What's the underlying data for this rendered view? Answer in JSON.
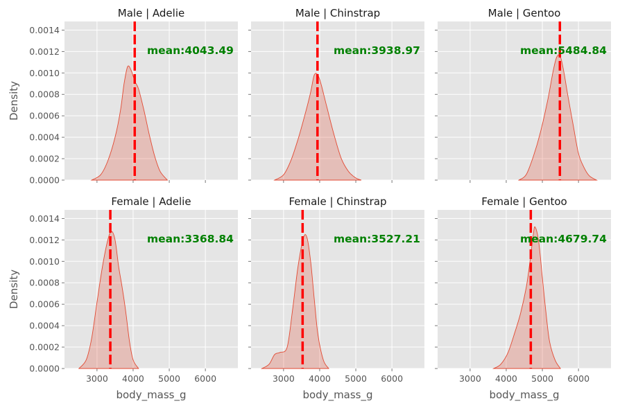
{
  "chart_data": {
    "type": "area",
    "layout": {
      "rows": [
        "Male",
        "Female"
      ],
      "cols": [
        "Adelie",
        "Chinstrap",
        "Gentoo"
      ]
    },
    "xlabel": "body_mass_g",
    "ylabel": "Density",
    "xlim": [
      2100,
      6900
    ],
    "ylim": [
      0,
      0.00148
    ],
    "xticks": [
      3000,
      4000,
      5000,
      6000
    ],
    "yticks": [
      0,
      0.0002,
      0.0004,
      0.0006,
      0.0008,
      0.001,
      0.0012,
      0.0014
    ],
    "ytick_labels": [
      "0.0000",
      "0.0002",
      "0.0004",
      "0.0006",
      "0.0008",
      "0.0010",
      "0.0012",
      "0.0014"
    ],
    "colors": {
      "kde": "#e24a33",
      "mean_line": "#ff0000",
      "mean_text": "#008000",
      "panel_bg": "#e5e5e5"
    },
    "panels": [
      {
        "title": "Male | Adelie",
        "mean": 4043.49,
        "mean_label": "mean:4043.49",
        "kde": [
          [
            2850,
            0
          ],
          [
            3100,
            5e-05
          ],
          [
            3300,
            0.00018
          ],
          [
            3500,
            0.0004
          ],
          [
            3650,
            0.00065
          ],
          [
            3750,
            0.0009
          ],
          [
            3850,
            0.00106
          ],
          [
            3950,
            0.00102
          ],
          [
            4050,
            0.00092
          ],
          [
            4150,
            0.00085
          ],
          [
            4300,
            0.00065
          ],
          [
            4450,
            0.00042
          ],
          [
            4600,
            0.00022
          ],
          [
            4750,
            8e-05
          ],
          [
            4950,
            0
          ]
        ]
      },
      {
        "title": "Male | Chinstrap",
        "mean": 3938.97,
        "mean_label": "mean:3938.97",
        "kde": [
          [
            2750,
            0
          ],
          [
            3000,
            5e-05
          ],
          [
            3200,
            0.00018
          ],
          [
            3400,
            0.00038
          ],
          [
            3600,
            0.00062
          ],
          [
            3750,
            0.00082
          ],
          [
            3850,
            0.00098
          ],
          [
            3950,
            0.00098
          ],
          [
            4050,
            0.00088
          ],
          [
            4200,
            0.00068
          ],
          [
            4400,
            0.00042
          ],
          [
            4600,
            0.0002
          ],
          [
            4800,
            8e-05
          ],
          [
            5000,
            2e-05
          ],
          [
            5150,
            0
          ]
        ]
      },
      {
        "title": "Male | Gentoo",
        "mean": 5484.84,
        "mean_label": "mean:5484.84",
        "kde": [
          [
            4350,
            0
          ],
          [
            4550,
            5e-05
          ],
          [
            4750,
            0.00022
          ],
          [
            4950,
            0.00045
          ],
          [
            5150,
            0.00075
          ],
          [
            5300,
            0.00102
          ],
          [
            5400,
            0.00115
          ],
          [
            5500,
            0.00115
          ],
          [
            5600,
            0.001
          ],
          [
            5700,
            0.0008
          ],
          [
            5850,
            0.00052
          ],
          [
            6000,
            0.00025
          ],
          [
            6150,
            0.00012
          ],
          [
            6300,
            4e-05
          ],
          [
            6500,
            0
          ]
        ]
      },
      {
        "title": "Female | Adelie",
        "mean": 3368.84,
        "mean_label": "mean:3368.84",
        "kde": [
          [
            2500,
            0
          ],
          [
            2700,
            8e-05
          ],
          [
            2850,
            0.00028
          ],
          [
            3000,
            0.00062
          ],
          [
            3150,
            0.00095
          ],
          [
            3300,
            0.0012
          ],
          [
            3400,
            0.00128
          ],
          [
            3500,
            0.0012
          ],
          [
            3600,
            0.00095
          ],
          [
            3700,
            0.00075
          ],
          [
            3800,
            0.00052
          ],
          [
            3900,
            0.00025
          ],
          [
            4000,
            8e-05
          ],
          [
            4150,
            0
          ]
        ]
      },
      {
        "title": "Female | Chinstrap",
        "mean": 3527.21,
        "mean_label": "mean:3527.21",
        "kde": [
          [
            2400,
            0
          ],
          [
            2600,
            4e-05
          ],
          [
            2750,
            0.00013
          ],
          [
            2900,
            0.00015
          ],
          [
            3100,
            0.0002
          ],
          [
            3250,
            0.00055
          ],
          [
            3400,
            0.00095
          ],
          [
            3550,
            0.00122
          ],
          [
            3650,
            0.00122
          ],
          [
            3750,
            0.001
          ],
          [
            3850,
            0.00065
          ],
          [
            3950,
            0.00032
          ],
          [
            4100,
            8e-05
          ],
          [
            4250,
            0
          ]
        ]
      },
      {
        "title": "Female | Gentoo",
        "mean": 4679.74,
        "mean_label": "mean:4679.74",
        "kde": [
          [
            3650,
            0
          ],
          [
            3850,
            4e-05
          ],
          [
            4050,
            0.00015
          ],
          [
            4250,
            0.00035
          ],
          [
            4400,
            0.00052
          ],
          [
            4550,
            0.00075
          ],
          [
            4650,
            0.00098
          ],
          [
            4750,
            0.00125
          ],
          [
            4800,
            0.00132
          ],
          [
            4900,
            0.00118
          ],
          [
            5000,
            0.00085
          ],
          [
            5100,
            0.00052
          ],
          [
            5200,
            0.00025
          ],
          [
            5350,
            8e-05
          ],
          [
            5500,
            0
          ]
        ]
      }
    ]
  }
}
